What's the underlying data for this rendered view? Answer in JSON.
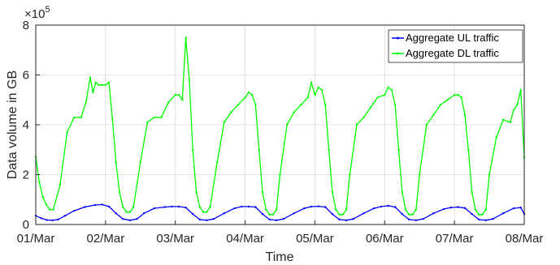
{
  "chart_data": {
    "type": "line",
    "title": "",
    "xlabel": "Time",
    "ylabel": "Data volume in GB",
    "exponent_label": "×10",
    "exponent_power": "5",
    "x_tick_labels": [
      "01/Mar",
      "02/Mar",
      "03/Mar",
      "04/Mar",
      "05/Mar",
      "06/Mar",
      "07/Mar",
      "08/Mar"
    ],
    "y_tick_labels": [
      "0",
      "2",
      "4",
      "6",
      "8"
    ],
    "xlim": [
      0,
      7
    ],
    "ylim": [
      0,
      8
    ],
    "grid": true,
    "legend_position": "top-right",
    "series": [
      {
        "name": "Aggregate UL traffic",
        "color": "#0000ff",
        "x": [
          0,
          0.08,
          0.16,
          0.24,
          0.32,
          0.42,
          0.55,
          0.7,
          0.85,
          0.95,
          1.05,
          1.15,
          1.25,
          1.35,
          1.45,
          1.55,
          1.7,
          1.85,
          1.95,
          2.05,
          2.15,
          2.25,
          2.35,
          2.45,
          2.55,
          2.7,
          2.85,
          2.95,
          3.05,
          3.15,
          3.25,
          3.35,
          3.45,
          3.55,
          3.7,
          3.85,
          3.95,
          4.05,
          4.15,
          4.25,
          4.35,
          4.45,
          4.55,
          4.7,
          4.85,
          4.95,
          5.05,
          5.15,
          5.25,
          5.35,
          5.45,
          5.55,
          5.7,
          5.85,
          5.95,
          6.05,
          6.15,
          6.25,
          6.35,
          6.45,
          6.55,
          6.7,
          6.85,
          6.95,
          7.0
        ],
        "y": [
          0.35,
          0.25,
          0.18,
          0.17,
          0.2,
          0.35,
          0.55,
          0.7,
          0.78,
          0.8,
          0.72,
          0.45,
          0.22,
          0.17,
          0.22,
          0.45,
          0.65,
          0.7,
          0.72,
          0.72,
          0.68,
          0.42,
          0.2,
          0.17,
          0.22,
          0.45,
          0.65,
          0.72,
          0.72,
          0.7,
          0.42,
          0.2,
          0.17,
          0.22,
          0.45,
          0.65,
          0.72,
          0.73,
          0.7,
          0.42,
          0.2,
          0.17,
          0.22,
          0.45,
          0.65,
          0.72,
          0.75,
          0.7,
          0.42,
          0.2,
          0.17,
          0.22,
          0.45,
          0.62,
          0.68,
          0.7,
          0.66,
          0.42,
          0.2,
          0.17,
          0.22,
          0.45,
          0.65,
          0.68,
          0.42
        ]
      },
      {
        "name": "Aggregate DL traffic",
        "color": "#00ff00",
        "x": [
          0,
          0.05,
          0.1,
          0.15,
          0.2,
          0.25,
          0.35,
          0.45,
          0.55,
          0.65,
          0.72,
          0.78,
          0.82,
          0.86,
          0.9,
          0.95,
          1.0,
          1.05,
          1.1,
          1.15,
          1.2,
          1.25,
          1.3,
          1.35,
          1.4,
          1.5,
          1.6,
          1.7,
          1.8,
          1.9,
          2.0,
          2.05,
          2.1,
          2.15,
          2.2,
          2.25,
          2.3,
          2.35,
          2.4,
          2.45,
          2.5,
          2.6,
          2.7,
          2.8,
          2.9,
          3.0,
          3.05,
          3.1,
          3.15,
          3.2,
          3.25,
          3.3,
          3.35,
          3.4,
          3.45,
          3.5,
          3.6,
          3.7,
          3.8,
          3.9,
          3.95,
          4.0,
          4.05,
          4.1,
          4.15,
          4.2,
          4.25,
          4.3,
          4.35,
          4.4,
          4.45,
          4.5,
          4.6,
          4.7,
          4.8,
          4.9,
          5.0,
          5.05,
          5.1,
          5.15,
          5.2,
          5.25,
          5.3,
          5.35,
          5.4,
          5.45,
          5.5,
          5.6,
          5.7,
          5.8,
          5.9,
          6.0,
          6.05,
          6.1,
          6.15,
          6.2,
          6.25,
          6.3,
          6.35,
          6.4,
          6.45,
          6.5,
          6.6,
          6.7,
          6.8,
          6.85,
          6.9,
          6.95,
          7.0
        ],
        "y": [
          2.7,
          1.7,
          1.1,
          0.8,
          0.6,
          0.6,
          1.6,
          3.7,
          4.3,
          4.3,
          4.9,
          5.9,
          5.3,
          5.7,
          5.6,
          5.6,
          5.6,
          5.7,
          4.2,
          2.5,
          1.3,
          0.7,
          0.5,
          0.5,
          0.7,
          2.5,
          4.1,
          4.3,
          4.3,
          4.9,
          5.2,
          5.2,
          5.0,
          7.5,
          5.8,
          3.0,
          1.3,
          0.7,
          0.5,
          0.5,
          0.7,
          2.5,
          4.1,
          4.5,
          4.8,
          5.1,
          5.3,
          5.2,
          4.8,
          3.0,
          1.3,
          0.6,
          0.4,
          0.4,
          0.6,
          2.0,
          4.0,
          4.5,
          4.8,
          5.1,
          5.7,
          5.2,
          5.5,
          5.4,
          4.8,
          3.0,
          1.3,
          0.6,
          0.4,
          0.4,
          0.6,
          2.0,
          4.0,
          4.3,
          4.7,
          5.1,
          5.2,
          5.5,
          5.4,
          4.8,
          3.0,
          1.3,
          0.6,
          0.4,
          0.4,
          0.6,
          2.0,
          4.0,
          4.4,
          4.8,
          5.0,
          5.2,
          5.2,
          5.1,
          4.4,
          3.0,
          1.3,
          0.6,
          0.4,
          0.4,
          0.6,
          2.0,
          3.5,
          4.2,
          4.1,
          4.6,
          4.8,
          5.4,
          2.7
        ]
      }
    ]
  }
}
